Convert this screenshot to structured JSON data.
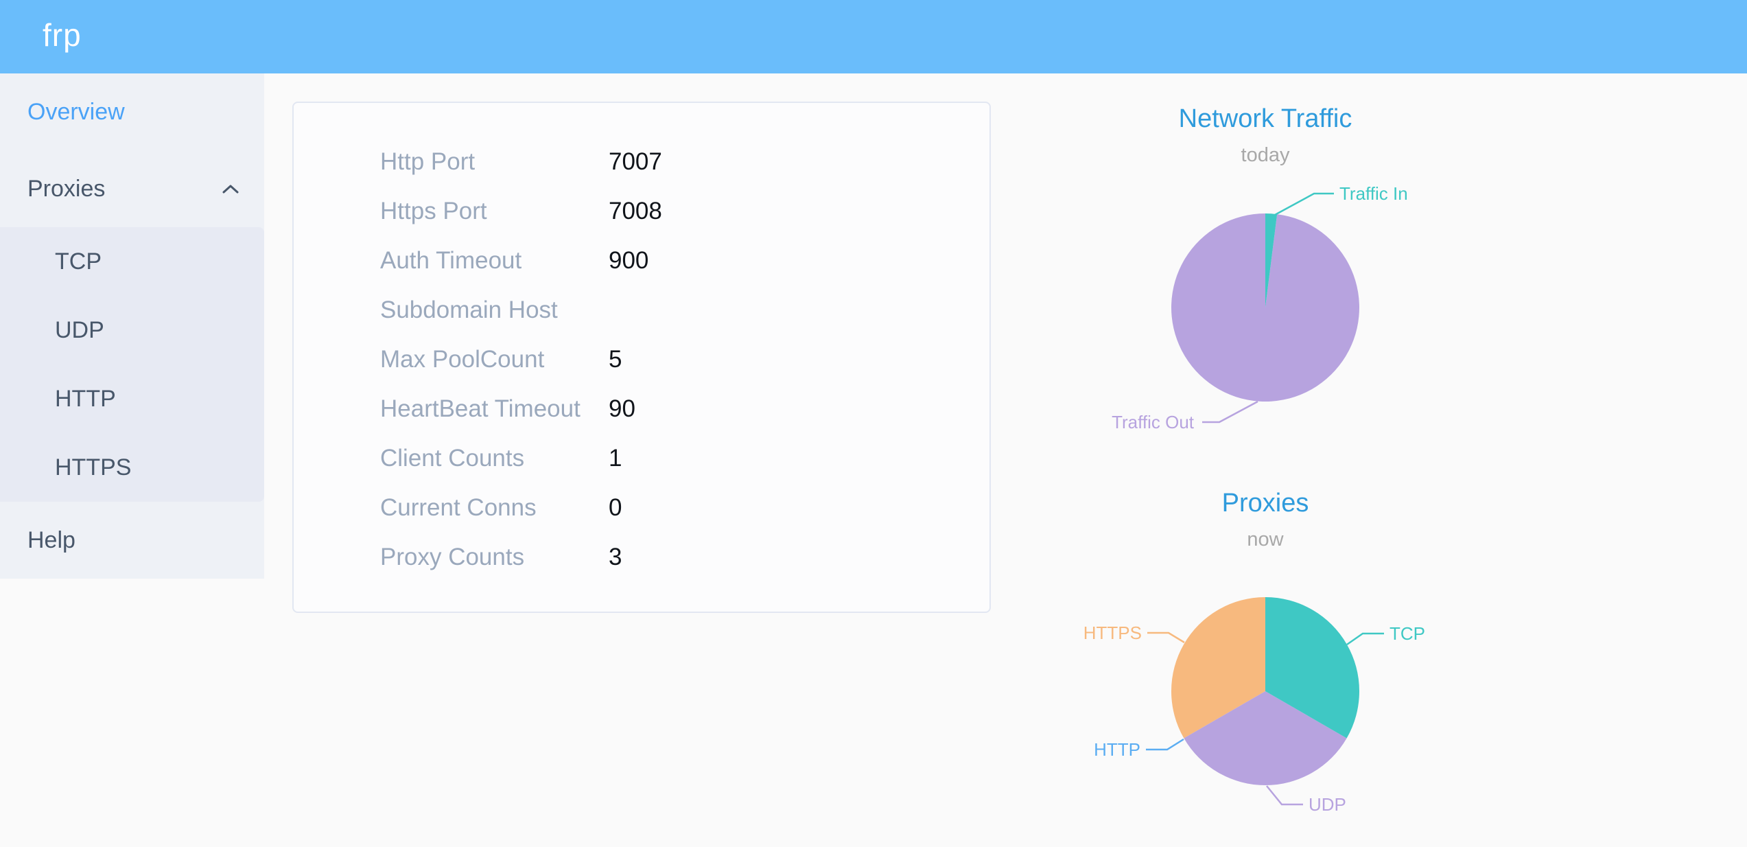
{
  "header": {
    "logo_text": "frp",
    "bg_color": "#6abdfb"
  },
  "sidebar": {
    "bg_color": "#eef1f6",
    "submenu_bg_color": "#e7eaf3",
    "text_color": "#48576a",
    "active_color": "#4aa2f7",
    "items": [
      {
        "label": "Overview",
        "active": true
      },
      {
        "label": "Proxies",
        "expanded": true,
        "children": [
          {
            "label": "TCP"
          },
          {
            "label": "UDP"
          },
          {
            "label": "HTTP"
          },
          {
            "label": "HTTPS"
          }
        ]
      },
      {
        "label": "Help"
      }
    ]
  },
  "overview_panel": {
    "rows": [
      {
        "label": "Http Port",
        "value": "7007"
      },
      {
        "label": "Https Port",
        "value": "7008"
      },
      {
        "label": "Auth Timeout",
        "value": "900"
      },
      {
        "label": "Subdomain Host",
        "value": ""
      },
      {
        "label": "Max PoolCount",
        "value": "5"
      },
      {
        "label": "HeartBeat Timeout",
        "value": "90"
      },
      {
        "label": "Client Counts",
        "value": "1"
      },
      {
        "label": "Current Conns",
        "value": "0"
      },
      {
        "label": "Proxy Counts",
        "value": "3"
      }
    ]
  },
  "chart_data": [
    {
      "type": "pie",
      "title": "Network Traffic",
      "subtitle": "today",
      "legend_position": "callout-labels",
      "values_are": "estimated percent of circle (no numeric labels shown on screen)",
      "data": [
        {
          "name": "Traffic In",
          "value": 2,
          "color": "#3fc8c4"
        },
        {
          "name": "Traffic Out",
          "value": 98,
          "color": "#b7a3df"
        }
      ]
    },
    {
      "type": "pie",
      "title": "Proxies",
      "subtitle": "now",
      "legend_position": "callout-labels",
      "values_are": "proxy counts (three equal visible slices, HTTP slice empty)",
      "data": [
        {
          "name": "TCP",
          "value": 1,
          "color": "#3fc8c4"
        },
        {
          "name": "UDP",
          "value": 1,
          "color": "#b7a3df"
        },
        {
          "name": "HTTP",
          "value": 0,
          "color": "#5badf2"
        },
        {
          "name": "HTTPS",
          "value": 1,
          "color": "#f7b97e"
        }
      ]
    }
  ]
}
